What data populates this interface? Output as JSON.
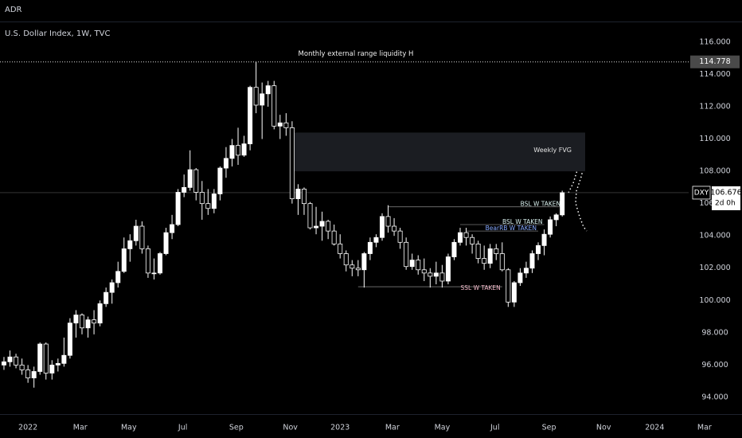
{
  "header": {
    "tab": "ADR",
    "title": "U.S. Dollar Index, 1W, TVC"
  },
  "chart_data": {
    "type": "candlestick",
    "categories": [
      null,
      null,
      null,
      null,
      null,
      null,
      null,
      null,
      null,
      null,
      null,
      null,
      null,
      null,
      null,
      null,
      null,
      null,
      null,
      null,
      null,
      null,
      null,
      null,
      null,
      null,
      null,
      null,
      null,
      null,
      null,
      null,
      null,
      null,
      null,
      null,
      null,
      null,
      null,
      null,
      null,
      null,
      null,
      null,
      null,
      null,
      null,
      null,
      null,
      null,
      null,
      null,
      null,
      null,
      null,
      null,
      null,
      null,
      null,
      null,
      null,
      null,
      null,
      null,
      null,
      null,
      null,
      null,
      null,
      null,
      null,
      null,
      null,
      null,
      null,
      null,
      null,
      null,
      null,
      null,
      null,
      null,
      null,
      null,
      null,
      null,
      null,
      null,
      null,
      null,
      null,
      null,
      null,
      null
    ],
    "open": [
      96.0,
      96.2,
      96.5,
      96.0,
      95.7,
      95.2,
      95.6,
      97.3,
      95.5,
      96.0,
      96.1,
      96.6,
      98.6,
      99.1,
      98.3,
      98.8,
      98.6,
      99.8,
      100.5,
      101.1,
      101.8,
      103.2,
      103.7,
      104.6,
      103.2,
      101.7,
      101.7,
      102.9,
      104.2,
      104.7,
      106.7,
      107.0,
      108.1,
      106.7,
      106.0,
      105.7,
      106.6,
      108.2,
      108.8,
      109.6,
      109.0,
      109.7,
      113.2,
      112.1,
      112.8,
      113.3,
      110.8,
      111.0,
      110.7,
      106.3,
      106.9,
      106.0,
      104.5,
      104.6,
      104.9,
      104.3,
      103.5,
      102.9,
      102.2,
      102.0,
      101.9,
      102.9,
      103.6,
      103.9,
      105.2,
      104.6,
      104.3,
      103.6,
      102.1,
      102.5,
      101.9,
      101.7,
      101.5,
      101.7,
      101.2,
      102.7,
      103.6,
      104.2,
      103.9,
      103.5,
      102.6,
      102.3,
      103.2,
      102.9,
      101.9,
      99.9,
      101.1,
      101.7,
      102.0,
      102.9,
      103.4,
      104.1,
      105.0,
      105.3
    ],
    "high": [
      96.5,
      96.9,
      96.7,
      96.4,
      96.0,
      95.9,
      97.4,
      97.4,
      96.3,
      96.4,
      97.7,
      98.9,
      99.4,
      99.2,
      99.0,
      99.4,
      100.0,
      100.8,
      101.3,
      102.4,
      103.9,
      104.1,
      105.0,
      104.9,
      103.4,
      102.6,
      103.0,
      104.5,
      105.3,
      106.9,
      107.8,
      109.3,
      108.2,
      107.4,
      106.9,
      106.9,
      108.3,
      109.5,
      110.0,
      110.7,
      110.2,
      113.3,
      114.778,
      113.5,
      113.6,
      113.6,
      111.5,
      111.6,
      111.1,
      107.2,
      107.0,
      106.1,
      105.8,
      105.5,
      105.0,
      104.7,
      104.1,
      103.1,
      102.5,
      102.5,
      103.0,
      103.9,
      104.1,
      105.4,
      105.9,
      105.1,
      104.5,
      103.9,
      102.9,
      102.8,
      102.6,
      102.0,
      102.4,
      102.2,
      102.9,
      103.8,
      104.5,
      104.5,
      104.1,
      103.7,
      103.4,
      103.5,
      103.5,
      103.6,
      102.0,
      101.2,
      102.0,
      102.4,
      103.1,
      103.6,
      104.4,
      105.2,
      105.4,
      106.8
    ],
    "low": [
      95.7,
      95.9,
      95.8,
      95.4,
      94.9,
      94.6,
      95.4,
      95.1,
      95.1,
      95.6,
      95.9,
      96.4,
      97.7,
      97.9,
      97.7,
      97.9,
      98.4,
      99.6,
      99.8,
      100.8,
      101.7,
      102.4,
      103.4,
      102.9,
      101.4,
      101.3,
      101.6,
      102.8,
      103.8,
      104.6,
      106.4,
      106.8,
      106.2,
      105.0,
      105.3,
      105.4,
      106.2,
      107.6,
      108.3,
      108.4,
      108.9,
      109.3,
      111.6,
      110.0,
      112.0,
      110.6,
      110.0,
      110.2,
      106.0,
      105.3,
      105.3,
      104.4,
      104.1,
      103.7,
      103.8,
      103.4,
      102.6,
      101.8,
      101.5,
      101.5,
      100.8,
      102.5,
      103.3,
      103.7,
      104.2,
      104.0,
      103.2,
      101.9,
      101.9,
      101.6,
      101.2,
      100.8,
      101.0,
      100.8,
      101.0,
      102.5,
      103.4,
      103.4,
      102.9,
      102.3,
      101.9,
      102.0,
      102.5,
      101.8,
      99.6,
      99.6,
      100.9,
      101.4,
      101.7,
      102.5,
      102.8,
      103.9,
      104.6,
      105.2
    ],
    "close": [
      96.2,
      96.5,
      96.0,
      95.7,
      95.2,
      95.6,
      97.3,
      95.5,
      96.0,
      96.1,
      96.6,
      98.6,
      99.1,
      98.3,
      98.8,
      98.6,
      99.8,
      100.5,
      101.1,
      101.8,
      103.2,
      103.7,
      104.6,
      103.2,
      101.7,
      101.7,
      102.9,
      104.2,
      104.7,
      106.7,
      107.0,
      108.1,
      106.7,
      106.0,
      105.7,
      106.6,
      108.2,
      108.8,
      109.6,
      109.0,
      109.7,
      113.2,
      112.1,
      112.8,
      113.3,
      110.8,
      111.0,
      110.7,
      106.3,
      106.9,
      106.0,
      104.5,
      104.6,
      104.9,
      104.3,
      103.5,
      102.9,
      102.2,
      102.0,
      101.9,
      102.9,
      103.6,
      103.9,
      105.2,
      104.6,
      104.3,
      103.6,
      102.1,
      102.5,
      101.9,
      101.7,
      101.5,
      101.7,
      101.2,
      102.7,
      103.6,
      104.2,
      103.9,
      103.5,
      102.6,
      102.3,
      103.2,
      102.9,
      101.9,
      99.9,
      101.1,
      101.7,
      102.0,
      102.9,
      103.4,
      104.1,
      105.0,
      105.3,
      106.676
    ],
    "up_color": "#ffffff",
    "down_color": "#000000",
    "ylim": [
      92.96,
      117.23
    ],
    "yticks": [
      {
        "value": 94,
        "label": "94.000"
      },
      {
        "value": 96,
        "label": "96.000"
      },
      {
        "value": 98,
        "label": "98.000"
      },
      {
        "value": 100,
        "label": "100.000"
      },
      {
        "value": 102,
        "label": "102.000"
      },
      {
        "value": 104,
        "label": "104.000"
      },
      {
        "value": 106,
        "label": "106.000"
      },
      {
        "value": 108,
        "label": "108.000"
      },
      {
        "value": 110,
        "label": "110.000"
      },
      {
        "value": 112,
        "label": "112.000"
      },
      {
        "value": 114,
        "label": "114.000"
      },
      {
        "value": 116,
        "label": "116.000"
      }
    ],
    "xlim": [
      -0.66,
      122.95
    ],
    "xticks": [
      {
        "value": 4,
        "label": "2022"
      },
      {
        "value": 12.7,
        "label": "Mar"
      },
      {
        "value": 20.8,
        "label": "May"
      },
      {
        "value": 29.8,
        "label": "Jul"
      },
      {
        "value": 38.7,
        "label": "Sep"
      },
      {
        "value": 47.7,
        "label": "Nov"
      },
      {
        "value": 56,
        "label": "2023"
      },
      {
        "value": 64.7,
        "label": "Mar"
      },
      {
        "value": 73,
        "label": "May"
      },
      {
        "value": 81.8,
        "label": "Jul"
      },
      {
        "value": 90.8,
        "label": "Sep"
      },
      {
        "value": 99.9,
        "label": "Nov"
      },
      {
        "value": 108.4,
        "label": "2024"
      },
      {
        "value": 116.7,
        "label": "Mar"
      }
    ],
    "grid": false,
    "range_level": {
      "text": "Monthly external range liquidity H",
      "value": 114.778,
      "label": "114.778"
    },
    "fvg": {
      "text": "Weekly FVG",
      "top": 110.4,
      "bottom": 108.0
    },
    "levels": [
      {
        "text": "BSL W TAKEN",
        "value": 105.8,
        "color": "#d8f0ee"
      },
      {
        "text": "BSL W TAKEN",
        "value": 104.7,
        "color": "#d8f0ee"
      },
      {
        "text": "BearRB W TAKEN",
        "value": 104.3,
        "color": "#86a8ff"
      },
      {
        "text": "SSL W TAKEN",
        "value": 100.85,
        "color": "#f2b8c8"
      }
    ],
    "last_price": {
      "symbol": "DXY",
      "value": 106.676,
      "label": "106.676",
      "countdown": "2d 0h"
    }
  }
}
